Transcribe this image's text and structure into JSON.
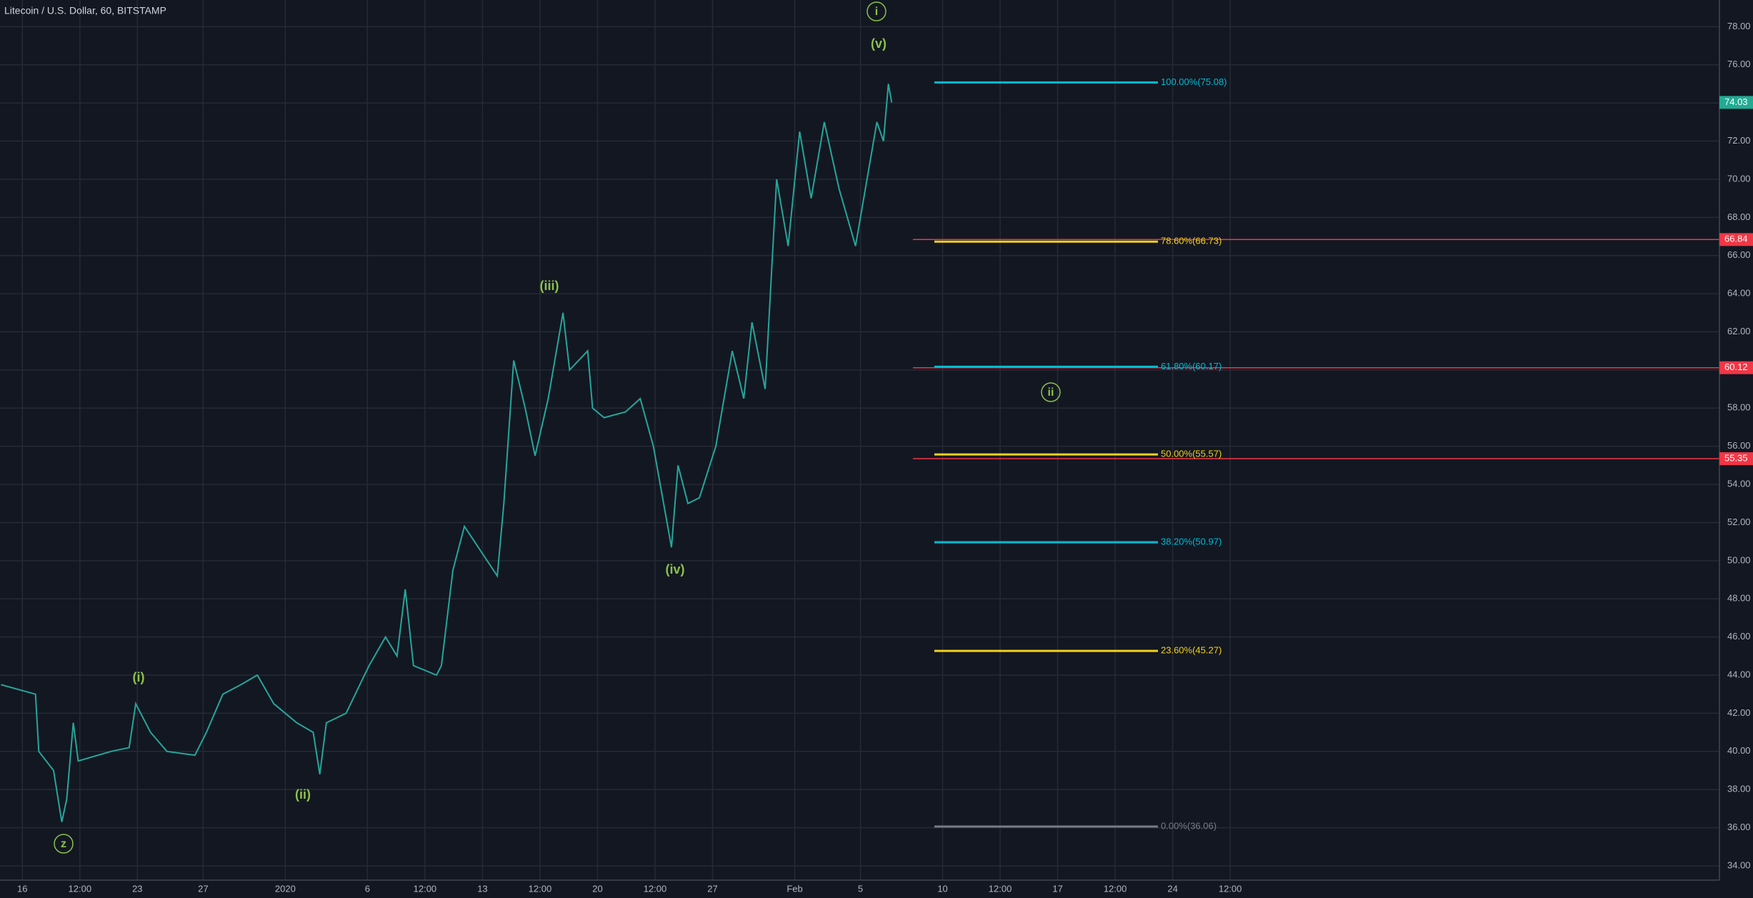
{
  "chart_data": {
    "type": "line",
    "title": "Litecoin / U.S. Dollar, 60, BITSTAMP",
    "xlim": [
      -1.36,
      103.27
    ],
    "ylim": [
      33.25,
      79.4
    ],
    "grid": true,
    "xticks": [
      {
        "value": 0,
        "label": "16"
      },
      {
        "value": 3.5,
        "label": "12:00"
      },
      {
        "value": 7,
        "label": "23"
      },
      {
        "value": 11,
        "label": "27"
      },
      {
        "value": 16,
        "label": "2020"
      },
      {
        "value": 21,
        "label": "6"
      },
      {
        "value": 24.5,
        "label": "12:00"
      },
      {
        "value": 28,
        "label": "13"
      },
      {
        "value": 31.5,
        "label": "12:00"
      },
      {
        "value": 35,
        "label": "20"
      },
      {
        "value": 38.5,
        "label": "12:00"
      },
      {
        "value": 42,
        "label": "27"
      },
      {
        "value": 47,
        "label": "Feb"
      },
      {
        "value": 51,
        "label": "5"
      },
      {
        "value": 56,
        "label": "10"
      },
      {
        "value": 59.5,
        "label": "12:00"
      },
      {
        "value": 63,
        "label": "17"
      },
      {
        "value": 66.5,
        "label": "12:00"
      },
      {
        "value": 70,
        "label": "24"
      },
      {
        "value": 73.5,
        "label": "12:00"
      }
    ],
    "yticks": [
      {
        "value": 34,
        "label": "34.00"
      },
      {
        "value": 36,
        "label": "36.00"
      },
      {
        "value": 38,
        "label": "38.00"
      },
      {
        "value": 40,
        "label": "40.00"
      },
      {
        "value": 42,
        "label": "42.00"
      },
      {
        "value": 44,
        "label": "44.00"
      },
      {
        "value": 46,
        "label": "46.00"
      },
      {
        "value": 48,
        "label": "48.00"
      },
      {
        "value": 50,
        "label": "50.00"
      },
      {
        "value": 52,
        "label": "52.00"
      },
      {
        "value": 54,
        "label": "54.00"
      },
      {
        "value": 56,
        "label": "56.00"
      },
      {
        "value": 58,
        "label": "58.00"
      },
      {
        "value": 60,
        "label": "60.00"
      },
      {
        "value": 62,
        "label": "62.00"
      },
      {
        "value": 64,
        "label": "64.00"
      },
      {
        "value": 66,
        "label": "66.00"
      },
      {
        "value": 68,
        "label": "68.00"
      },
      {
        "value": 70,
        "label": "70.00"
      },
      {
        "value": 72,
        "label": "72.00"
      },
      {
        "value": 74,
        "label": "74.00"
      },
      {
        "value": 76,
        "label": "76.00"
      },
      {
        "value": 78,
        "label": "78.00"
      }
    ],
    "series": [
      {
        "name": "LTCUSD",
        "color": "#26a69a",
        "x": [
          -1.3,
          0.8,
          1.0,
          1.9,
          2.4,
          2.7,
          3.1,
          3.4,
          5.4,
          6.5,
          6.9,
          7.8,
          8.8,
          10.5,
          11.2,
          12.2,
          13.3,
          14.3,
          15.3,
          16.7,
          17.7,
          18.1,
          18.5,
          19.7,
          21.1,
          22.1,
          22.8,
          23.3,
          23.8,
          25.2,
          25.5,
          26.2,
          26.9,
          27.9,
          28.9,
          29.3,
          29.9,
          30.6,
          31.2,
          32.0,
          32.9,
          33.3,
          34.4,
          34.7,
          35.4,
          36.7,
          37.6,
          38.4,
          39.5,
          39.9,
          40.5,
          41.2,
          42.2,
          43.2,
          43.9,
          44.4,
          45.2,
          45.9,
          46.6,
          47.3,
          48.0,
          48.8,
          49.7,
          50.7,
          51.4,
          52.0,
          52.4,
          52.7,
          52.9
        ],
        "values": [
          43.5,
          43,
          40,
          39,
          36.3,
          37.5,
          41.5,
          39.5,
          40,
          40.2,
          42.5,
          41,
          40,
          39.8,
          41,
          43,
          43.5,
          44,
          42.5,
          41.5,
          41,
          38.8,
          41.5,
          42,
          44.5,
          46,
          45,
          48.5,
          44.5,
          44,
          44.5,
          49.5,
          51.8,
          50.5,
          49.2,
          53,
          60.5,
          58,
          55.5,
          58.5,
          63,
          60,
          61,
          58,
          57.5,
          57.8,
          58.5,
          56,
          50.7,
          55,
          53,
          53.3,
          56,
          61,
          58.5,
          62.5,
          59,
          70,
          66.5,
          72.5,
          69,
          73,
          69.5,
          66.5,
          70,
          73,
          72,
          75,
          74.03
        ]
      }
    ],
    "fib_levels": [
      {
        "label": "100.00%(75.08)",
        "value": 75.08,
        "color": "#00bcd4"
      },
      {
        "label": "78.60%(66.73)",
        "value": 66.73,
        "color": "#f2d21b"
      },
      {
        "label": "61.80%(60.17)",
        "value": 60.17,
        "color": "#00bcd4"
      },
      {
        "label": "50.00%(55.57)",
        "value": 55.57,
        "color": "#f2d21b"
      },
      {
        "label": "38.20%(50.97)",
        "value": 50.97,
        "color": "#00bcd4"
      },
      {
        "label": "23.60%(45.27)",
        "value": 45.27,
        "color": "#f2d21b"
      },
      {
        "label": "0.00%(36.06)",
        "value": 36.06,
        "color": "#787b86"
      }
    ],
    "price_lines": [
      {
        "value": 66.84,
        "color": "#f23645"
      },
      {
        "value": 60.12,
        "color": "#f23645"
      },
      {
        "value": 55.35,
        "color": "#f23645"
      }
    ],
    "last_price": {
      "value": 74.03,
      "color": "#22ab94"
    },
    "annotations": [
      {
        "text": "z",
        "circled": true
      },
      {
        "text": "(i)",
        "circled": false
      },
      {
        "text": "(ii)",
        "circled": false
      },
      {
        "text": "(iii)",
        "circled": false
      },
      {
        "text": "(iv)",
        "circled": false
      },
      {
        "text": "(v)",
        "circled": false
      },
      {
        "text": "i",
        "circled": true
      },
      {
        "text": "ii",
        "circled": true
      }
    ]
  }
}
